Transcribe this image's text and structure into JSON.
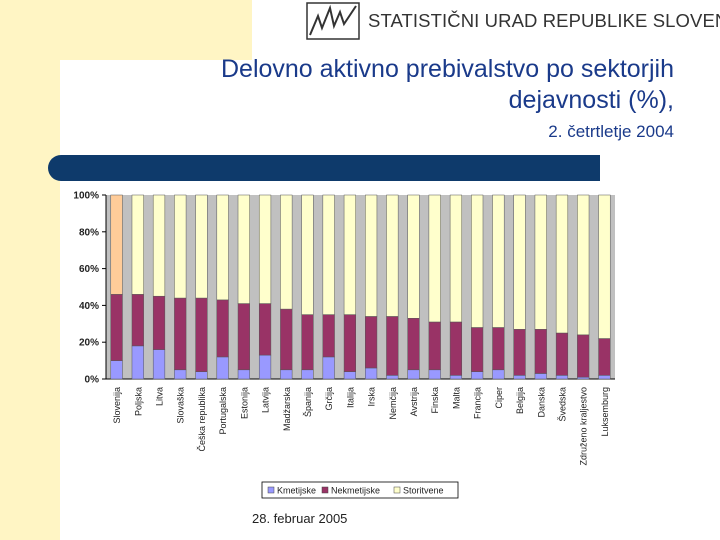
{
  "header": {
    "logo_text": "STATISTIČNI URAD REPUBLIKE SLOVENIJE",
    "logo_icon": "statistical-office-logo-icon"
  },
  "slide": {
    "title_line1": "Delovno aktivno prebivalstvo po sektorjih",
    "title_line2": "dejavnosti (%),",
    "subtitle": "2. četrtletje 2004",
    "footer_date": "28. februar 2005"
  },
  "colors": {
    "accent_band": "#fff5c4",
    "divider": "#0e3a6b",
    "title": "#1a3a8a"
  },
  "chart_data": {
    "type": "bar",
    "stacked": true,
    "percent_stacked": true,
    "categories": [
      "Slovenija",
      "Poljska",
      "Litva",
      "Slovaška",
      "Češka republika",
      "Portugalska",
      "Estonija",
      "Latvija",
      "Madžarska",
      "Španija",
      "Grčija",
      "Italija",
      "Irska",
      "Nemčija",
      "Avstrija",
      "Finska",
      "Malta",
      "Francija",
      "Ciper",
      "Belgija",
      "Danska",
      "Švedska",
      "Združeno kraljestvo",
      "Luksemburg"
    ],
    "series": [
      {
        "name": "Kmetijske",
        "color": "#9999ff",
        "values": [
          10,
          18,
          16,
          5,
          4,
          12,
          5,
          13,
          5,
          5,
          12,
          4,
          6,
          2,
          5,
          5,
          2,
          4,
          5,
          2,
          3,
          2,
          1,
          2
        ]
      },
      {
        "name": "Nekmetijske",
        "color": "#993366",
        "values": [
          36,
          28,
          29,
          39,
          40,
          31,
          36,
          28,
          33,
          30,
          23,
          31,
          28,
          32,
          28,
          26,
          29,
          24,
          23,
          25,
          24,
          23,
          23,
          20
        ]
      },
      {
        "name": "Storitvene",
        "color": "#ffffcc",
        "values": [
          54,
          54,
          55,
          56,
          56,
          57,
          59,
          59,
          62,
          65,
          65,
          65,
          66,
          66,
          67,
          69,
          69,
          72,
          72,
          73,
          73,
          75,
          76,
          78
        ]
      }
    ],
    "first_bar_storitvene_color": "#ffcc99",
    "yticks": [
      "0%",
      "20%",
      "40%",
      "60%",
      "80%",
      "100%"
    ],
    "ylim": [
      0,
      100
    ],
    "grid": false,
    "plot_background": "#c0c0c0",
    "legend_position": "bottom-center"
  }
}
